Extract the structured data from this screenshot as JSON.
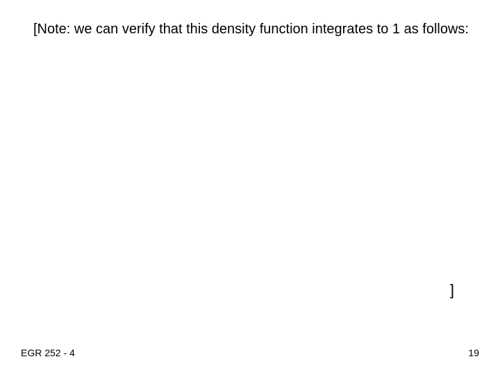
{
  "slide": {
    "note_text": "[Note: we can verify that this density function integrates to 1 as follows:",
    "closing_bracket": "]",
    "footer_left": "EGR 252 - 4",
    "page_number": "19"
  },
  "style": {
    "background_color": "#ffffff",
    "text_color": "#000000",
    "body_fontsize": 20,
    "footer_fontsize": 14,
    "font_family": "Arial"
  }
}
